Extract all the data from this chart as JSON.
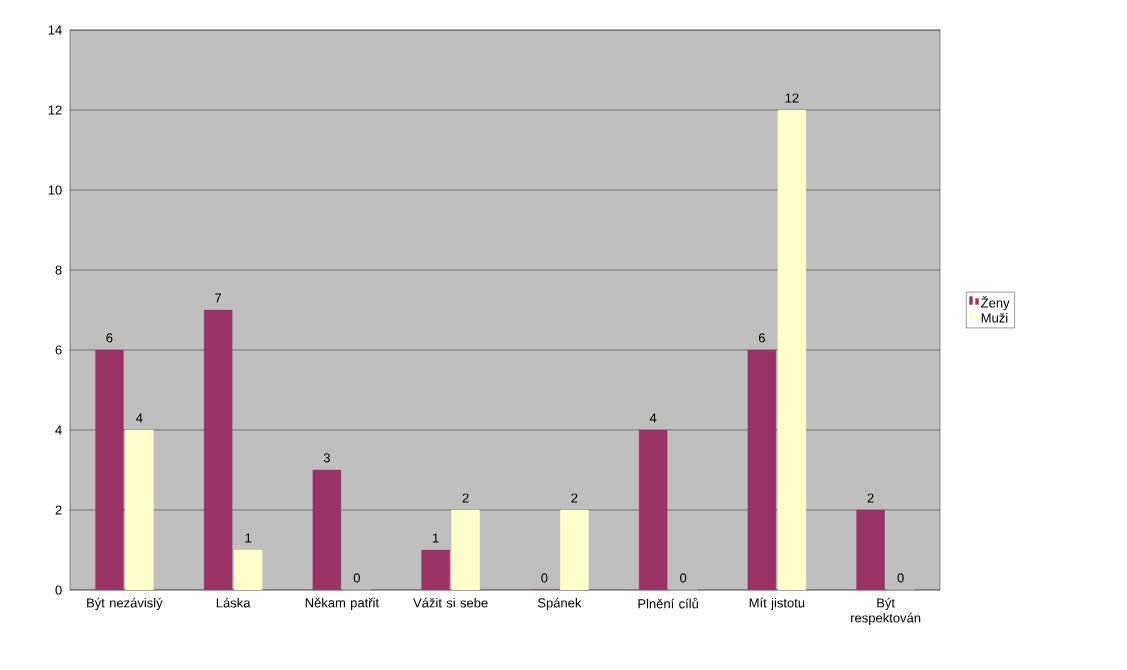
{
  "chart_data": {
    "type": "bar",
    "categories": [
      "Být nezávislý",
      "Láska",
      "Někam patřit",
      "Vážit si sebe",
      "Spánek",
      "Plnění cílů",
      "Mít jistotu",
      "Být respektován"
    ],
    "series": [
      {
        "name": "Ženy",
        "color": "#993366",
        "values": [
          6,
          7,
          3,
          1,
          0,
          4,
          6,
          2
        ]
      },
      {
        "name": "Muži",
        "color": "#ffffcc",
        "values": [
          4,
          1,
          0,
          2,
          2,
          0,
          12,
          0
        ]
      }
    ],
    "ylim": [
      0,
      14
    ],
    "yticks": [
      0,
      2,
      4,
      6,
      8,
      10,
      12,
      14
    ],
    "grid": "y",
    "legend": "right",
    "data_labels": true
  }
}
